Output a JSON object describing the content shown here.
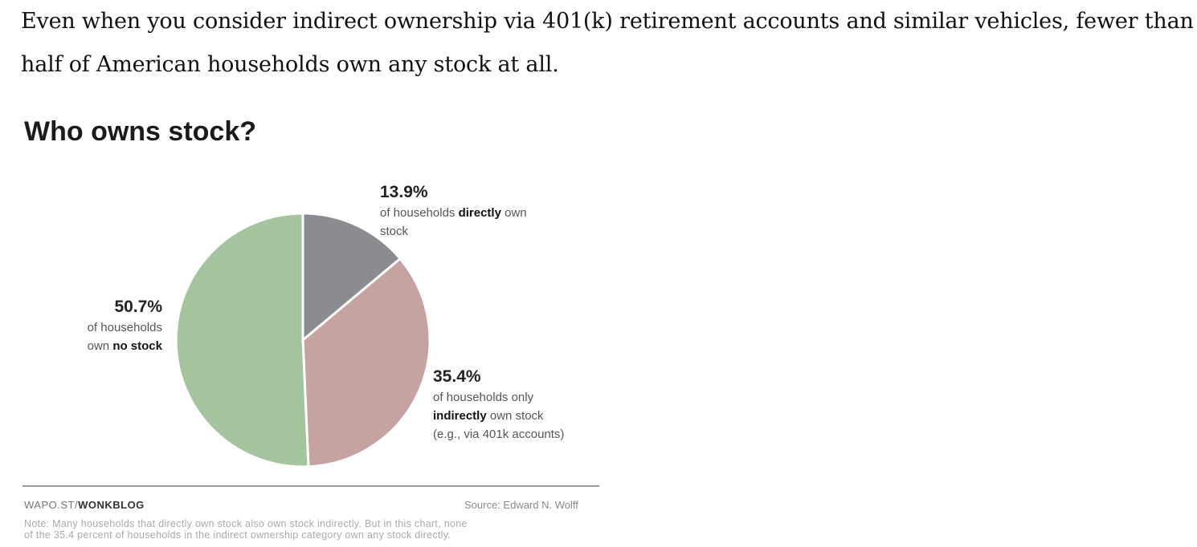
{
  "intro": {
    "line1": "Even when you consider indirect ownership via 401(k) retirement accounts and similar vehicles, fewer than",
    "line2": "half of American households own any stock at all."
  },
  "chart_data": {
    "type": "pie",
    "title": "Who owns stock?",
    "start_angle_deg": 0,
    "direction": "clockwise",
    "slices": [
      {
        "id": "direct",
        "value": 13.9,
        "color": "#8b8b92",
        "pct_label": "13.9%",
        "desc_pre": "of households",
        "desc_bold": "directly",
        "desc_post": "own",
        "desc_line2": "stock"
      },
      {
        "id": "indirect",
        "value": 35.4,
        "color": "#c4a3a1",
        "pct_label": "35.4%",
        "desc_line1": "of households only",
        "desc_bold": "indirectly",
        "desc_post": "own stock",
        "desc_line3": "(e.g., via 401k accounts)"
      },
      {
        "id": "none",
        "value": 50.7,
        "color": "#a3c49d",
        "pct_label": "50.7%",
        "desc_line1": "of households",
        "desc_pre": "own",
        "desc_bold": "no stock"
      }
    ]
  },
  "footer": {
    "site_prefix": "WAPO.ST/",
    "site_brand": "WONKBLOG",
    "source": "Source: Edward N. Wolff",
    "note_line1": "Note: Many households that directly own stock also own stock indirectly. But in this chart, none",
    "note_line2": "of the 35.4 percent of households in the indirect ownership category own any stock directly."
  }
}
